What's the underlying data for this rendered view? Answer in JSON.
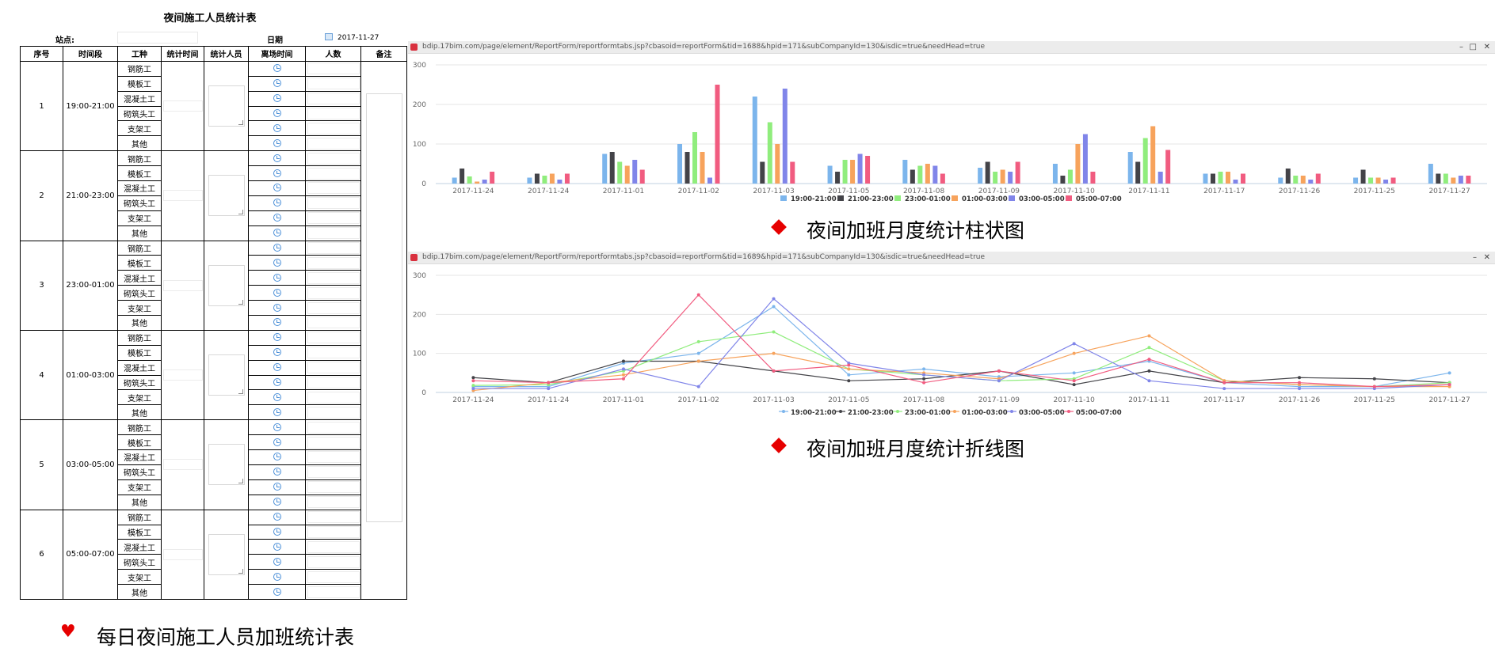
{
  "form": {
    "title": "夜间施工人员统计表",
    "site_label": "站点:",
    "date_label": "日期",
    "date_value": "2017-11-27",
    "headers": [
      "序号",
      "时间段",
      "工种",
      "统计时间",
      "统计人员",
      "离场时间",
      "人数",
      "备注"
    ],
    "worker_types": [
      "钢筋工",
      "模板工",
      "混凝土工",
      "砌筑头工",
      "支架工",
      "其他"
    ],
    "periods": [
      {
        "index": "1",
        "range": "19:00-21:00"
      },
      {
        "index": "2",
        "range": "21:00-23:00"
      },
      {
        "index": "3",
        "range": "23:00-01:00"
      },
      {
        "index": "4",
        "range": "01:00-03:00"
      },
      {
        "index": "5",
        "range": "03:00-05:00"
      },
      {
        "index": "6",
        "range": "05:00-07:00"
      }
    ]
  },
  "bar_window": {
    "url": "bdip.17bim.com/page/element/ReportForm/reportformtabs.jsp?cbasoid=reportForm&tid=1688&hpid=171&subCompanyId=130&isdic=true&needHead=true",
    "caption": "夜间加班月度统计柱状图"
  },
  "line_window": {
    "url": "bdip.17bim.com/page/element/ReportForm/reportformtabs.jsp?cbasoid=reportForm&tid=1689&hpid=171&subCompanyId=130&isdic=true&needHead=true",
    "caption": "夜间加班月度统计折线图"
  },
  "bottom_caption": "每日夜间施工人员加班统计表",
  "chart_data": [
    {
      "type": "bar",
      "categories": [
        "2017-11-24",
        "2017-11-24",
        "2017-11-01",
        "2017-11-02",
        "2017-11-03",
        "2017-11-05",
        "2017-11-08",
        "2017-11-09",
        "2017-11-10",
        "2017-11-11",
        "2017-11-17",
        "2017-11-26",
        "2017-11-25",
        "2017-11-27"
      ],
      "ylim": [
        0,
        300
      ],
      "yticks": [
        0,
        100,
        200,
        300
      ],
      "legend": "bottom",
      "series": [
        {
          "name": "19:00-21:00",
          "color": "#7cb5ec",
          "values": [
            15,
            15,
            75,
            100,
            220,
            45,
            60,
            40,
            50,
            80,
            25,
            15,
            15,
            50
          ]
        },
        {
          "name": "21:00-23:00",
          "color": "#434348",
          "values": [
            38,
            25,
            80,
            80,
            55,
            30,
            35,
            55,
            20,
            55,
            25,
            38,
            35,
            25
          ]
        },
        {
          "name": "23:00-01:00",
          "color": "#90ed7d",
          "values": [
            18,
            20,
            55,
            130,
            155,
            60,
            45,
            30,
            35,
            115,
            30,
            20,
            15,
            25
          ]
        },
        {
          "name": "01:00-03:00",
          "color": "#f7a35c",
          "values": [
            5,
            25,
            45,
            80,
            100,
            60,
            50,
            35,
            100,
            145,
            30,
            20,
            15,
            15
          ]
        },
        {
          "name": "03:00-05:00",
          "color": "#8085e9",
          "values": [
            10,
            10,
            60,
            15,
            240,
            75,
            45,
            30,
            125,
            30,
            10,
            10,
            10,
            20
          ]
        },
        {
          "name": "05:00-07:00",
          "color": "#f15c80",
          "values": [
            30,
            25,
            35,
            250,
            55,
            70,
            25,
            55,
            30,
            85,
            25,
            25,
            15,
            20
          ]
        }
      ]
    },
    {
      "type": "line",
      "categories": [
        "2017-11-24",
        "2017-11-24",
        "2017-11-01",
        "2017-11-02",
        "2017-11-03",
        "2017-11-05",
        "2017-11-08",
        "2017-11-09",
        "2017-11-10",
        "2017-11-11",
        "2017-11-17",
        "2017-11-26",
        "2017-11-25",
        "2017-11-27"
      ],
      "ylim": [
        0,
        300
      ],
      "yticks": [
        0,
        100,
        200,
        300
      ],
      "legend": "bottom",
      "series": [
        {
          "name": "19:00-21:00",
          "color": "#7cb5ec",
          "values": [
            15,
            15,
            75,
            100,
            220,
            45,
            60,
            40,
            50,
            80,
            25,
            15,
            15,
            50
          ]
        },
        {
          "name": "21:00-23:00",
          "color": "#434348",
          "values": [
            38,
            25,
            80,
            80,
            55,
            30,
            35,
            55,
            20,
            55,
            25,
            38,
            35,
            25
          ]
        },
        {
          "name": "23:00-01:00",
          "color": "#90ed7d",
          "values": [
            18,
            20,
            55,
            130,
            155,
            60,
            45,
            30,
            35,
            115,
            30,
            20,
            15,
            25
          ]
        },
        {
          "name": "01:00-03:00",
          "color": "#f7a35c",
          "values": [
            5,
            25,
            45,
            80,
            100,
            60,
            50,
            35,
            100,
            145,
            30,
            20,
            15,
            15
          ]
        },
        {
          "name": "03:00-05:00",
          "color": "#8085e9",
          "values": [
            10,
            10,
            60,
            15,
            240,
            75,
            45,
            30,
            125,
            30,
            10,
            10,
            10,
            20
          ]
        },
        {
          "name": "05:00-07:00",
          "color": "#f15c80",
          "values": [
            30,
            25,
            35,
            250,
            55,
            70,
            25,
            55,
            30,
            85,
            25,
            25,
            15,
            20
          ]
        }
      ]
    }
  ]
}
